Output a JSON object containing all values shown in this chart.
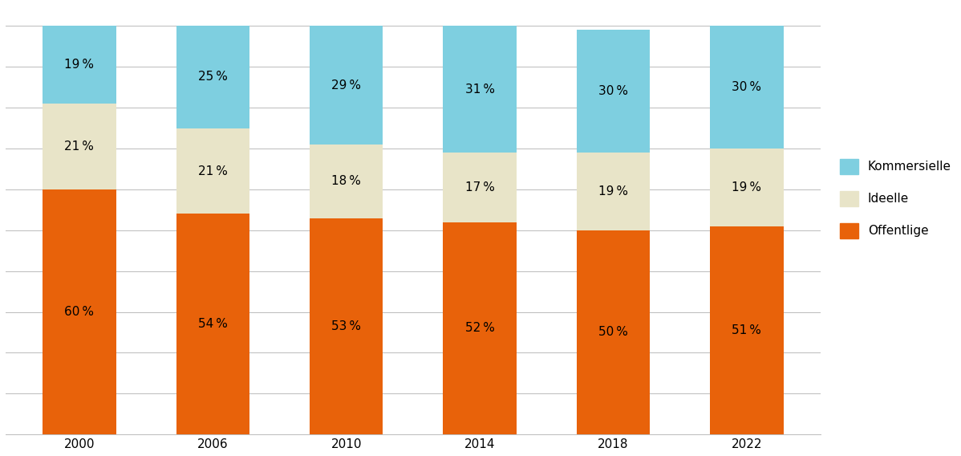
{
  "years": [
    "2000",
    "2006",
    "2010",
    "2014",
    "2018",
    "2022"
  ],
  "offentlige": [
    60,
    54,
    53,
    52,
    50,
    51
  ],
  "ideelle": [
    21,
    21,
    18,
    17,
    19,
    19
  ],
  "kommersielle": [
    19,
    25,
    29,
    31,
    30,
    30
  ],
  "color_offentlige": "#E8620A",
  "color_ideelle": "#E8E4C8",
  "color_kommersielle": "#7ECFE0",
  "bar_width": 0.55,
  "ylim": [
    0,
    105
  ],
  "ytick_positions": [
    0,
    10,
    20,
    30,
    40,
    50,
    60,
    70,
    80,
    90,
    100
  ],
  "legend_labels": [
    "Kommersielle",
    "Ideelle",
    "Offentlige"
  ],
  "legend_colors": [
    "#7ECFE0",
    "#E8E4C8",
    "#E8620A"
  ],
  "label_fontsize": 11,
  "tick_fontsize": 11,
  "background_color": "#ffffff",
  "grid_color": "#bbbbbb",
  "grid_linewidth": 0.7
}
